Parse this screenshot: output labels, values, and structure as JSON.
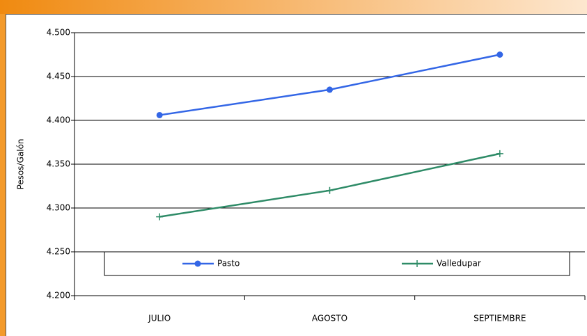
{
  "chart_data": {
    "type": "line",
    "y_label": "Pesos/Galón",
    "categories": [
      "JULIO",
      "AGOSTO",
      "SEPTIEMBRE"
    ],
    "series": [
      {
        "name": "Pasto",
        "color": "#3366e6",
        "marker": "circle",
        "values": [
          4406,
          4435,
          4475
        ]
      },
      {
        "name": "Valledupar",
        "color": "#2e8b67",
        "marker": "plus",
        "values": [
          4290,
          4320,
          4362
        ]
      }
    ],
    "ylim": [
      4200,
      4500
    ],
    "yticks": [
      {
        "value": 4200,
        "label": "4.200"
      },
      {
        "value": 4250,
        "label": "4.250"
      },
      {
        "value": 4300,
        "label": "4.300"
      },
      {
        "value": 4350,
        "label": "4.350"
      },
      {
        "value": 4400,
        "label": "4.400"
      },
      {
        "value": 4450,
        "label": "4.450"
      },
      {
        "value": 4500,
        "label": "4.500"
      }
    ],
    "grid": true,
    "legend": "bottom"
  }
}
